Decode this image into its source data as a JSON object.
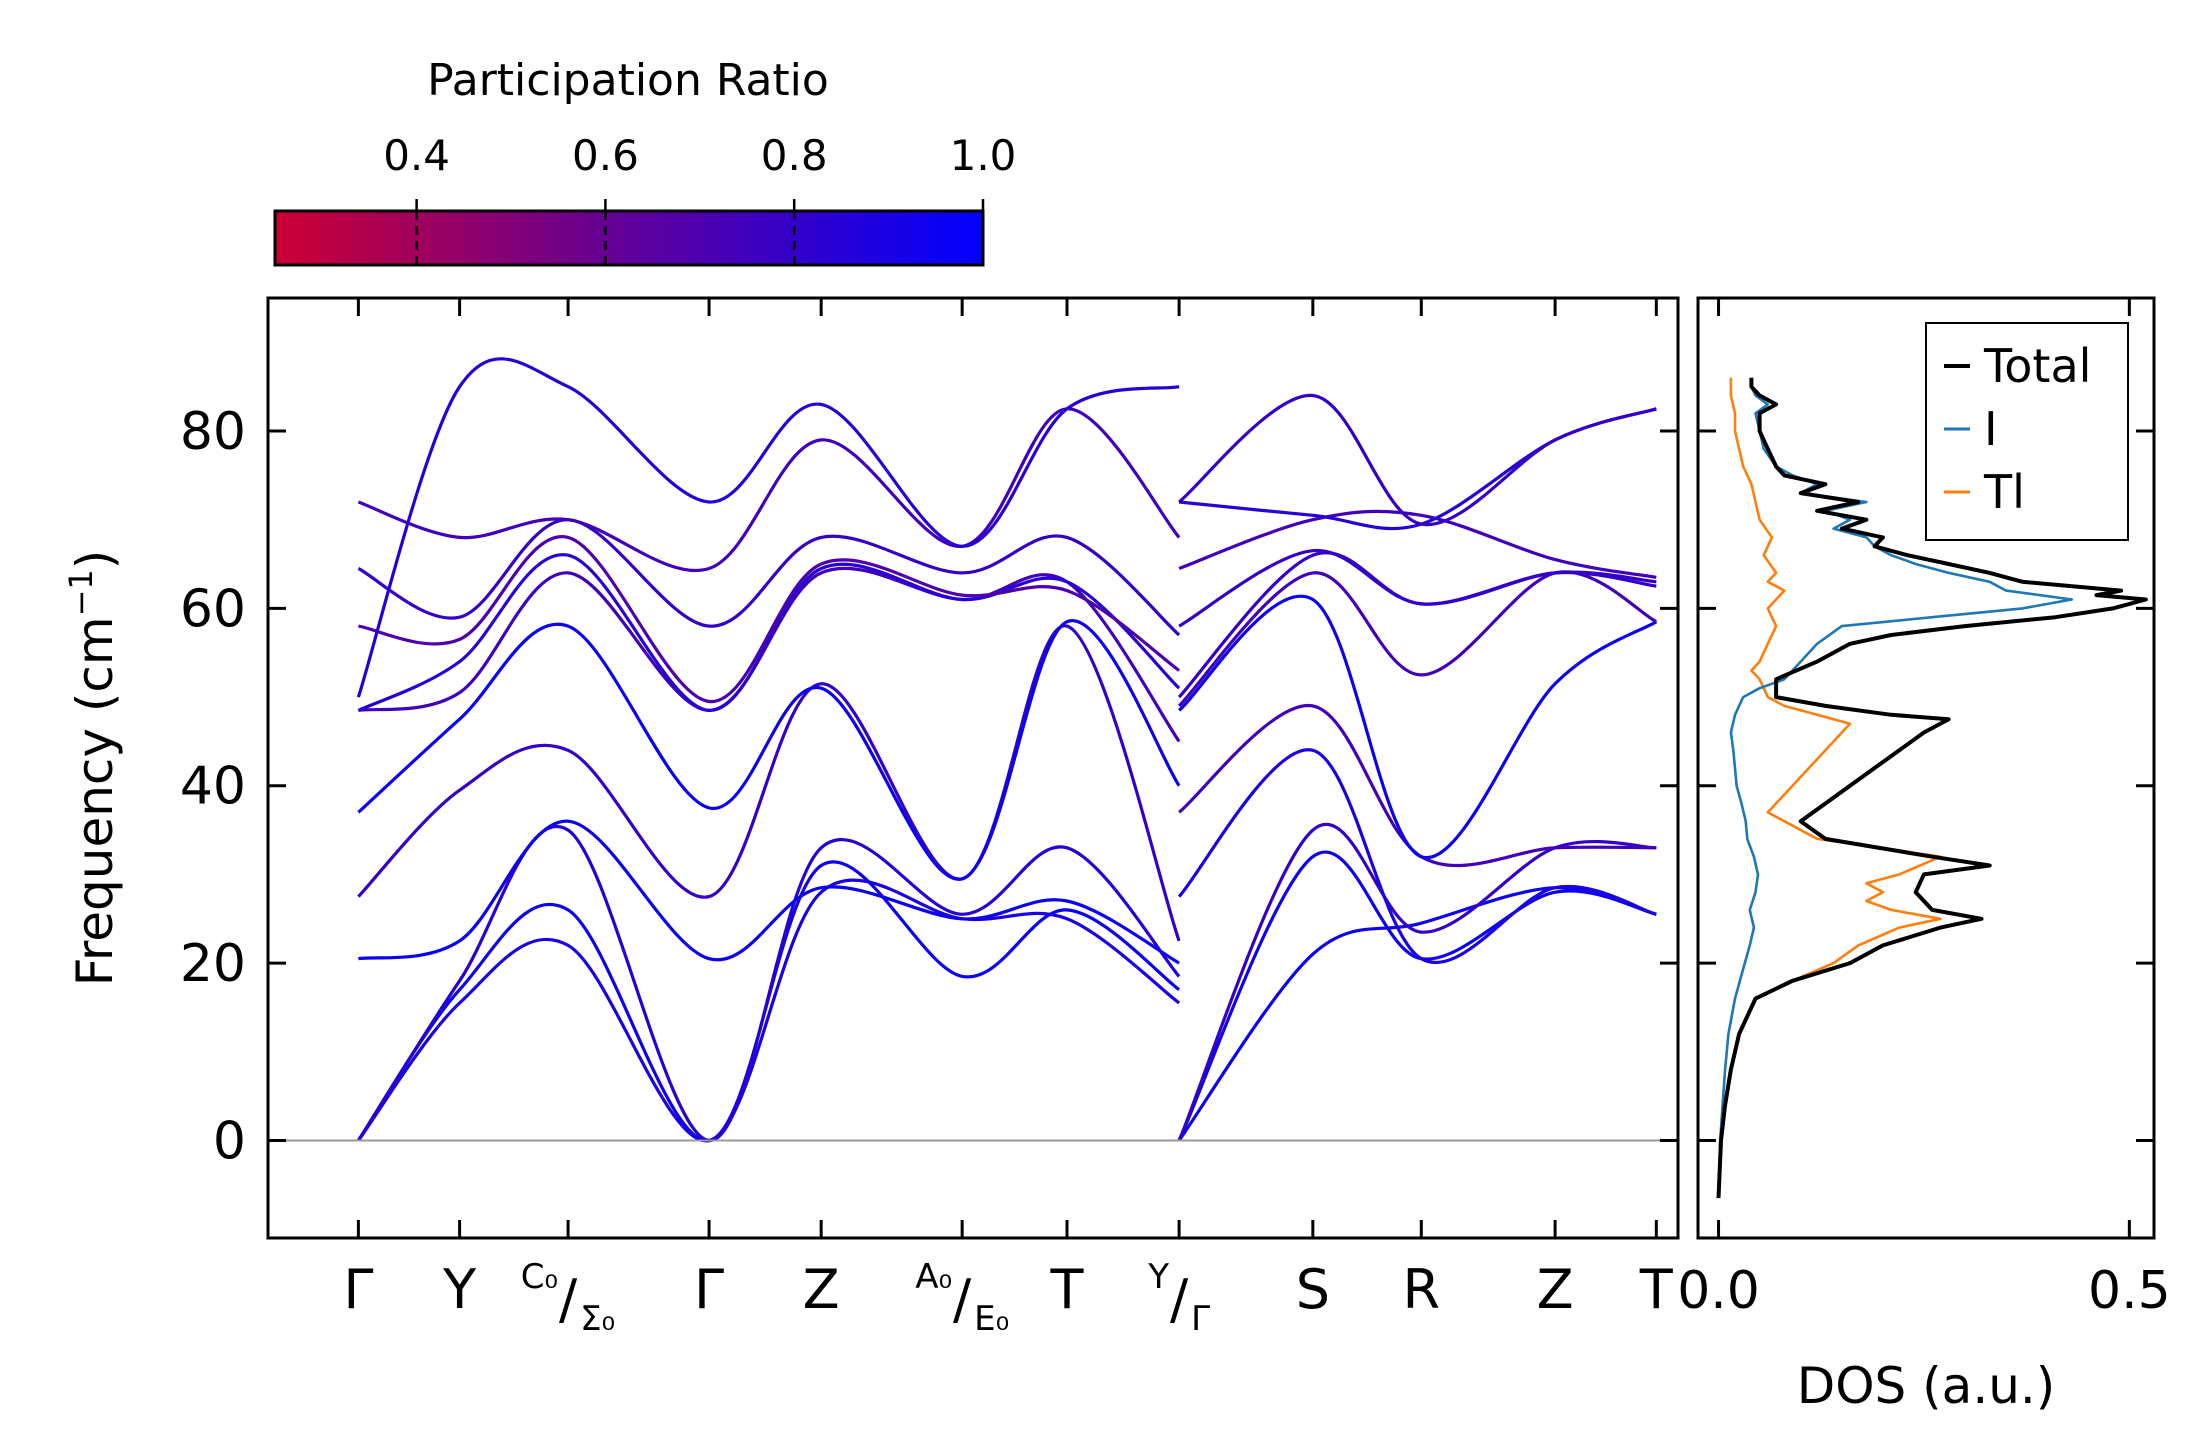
{
  "chart_data": [
    {
      "type": "line",
      "name": "phonon-band-structure",
      "ylabel": "Frequency (cm$^{-1}$)",
      "ylabel_text": "Frequency (cm",
      "ylabel_sup": "−1",
      "ylabel_close": ")",
      "ylim": [
        -11,
        95
      ],
      "yticks": [
        0,
        20,
        40,
        60,
        80
      ],
      "xlim": [
        -0.25,
        3.65
      ],
      "kpoints": [
        {
          "x": 0.0,
          "main": "Γ"
        },
        {
          "x": 0.28,
          "main": "Y"
        },
        {
          "x": 0.58,
          "sup": "C₀",
          "slash": "/",
          "sub": "Σ₀"
        },
        {
          "x": 0.97,
          "main": "Γ"
        },
        {
          "x": 1.28,
          "main": "Z"
        },
        {
          "x": 1.67,
          "sup": "A₀",
          "slash": "/",
          "sub": "E₀"
        },
        {
          "x": 1.96,
          "main": "T"
        },
        {
          "x": 2.27,
          "sup": "Y",
          "slash": "/",
          "sub": "Γ"
        },
        {
          "x": 2.64,
          "main": "S"
        },
        {
          "x": 2.94,
          "main": "R"
        },
        {
          "x": 3.31,
          "main": "Z"
        },
        {
          "x": 3.59,
          "main": "T"
        }
      ],
      "segments": [
        {
          "x": [
            0.0,
            0.28,
            0.58,
            0.97,
            1.28,
            1.67,
            1.96,
            2.27
          ],
          "bands": [
            {
              "pr": 0.9,
              "y": [
                0,
                15.5,
                22,
                0,
                28,
                25,
                25,
                15.5
              ]
            },
            {
              "pr": 0.95,
              "y": [
                0,
                17,
                26,
                0,
                31,
                18.5,
                26,
                17
              ]
            },
            {
              "pr": 0.85,
              "y": [
                0,
                18,
                35,
                0,
                33,
                25.5,
                33,
                18.5
              ]
            },
            {
              "pr": 0.95,
              "y": [
                20.5,
                22.5,
                36,
                20.5,
                28.5,
                25,
                27,
                20
              ]
            },
            {
              "pr": 0.8,
              "y": [
                27.5,
                39.5,
                44,
                27.5,
                51.5,
                29.5,
                58,
                22.5
              ]
            },
            {
              "pr": 0.95,
              "y": [
                37,
                47.5,
                58,
                37.5,
                51,
                29.5,
                58.5,
                40
              ]
            },
            {
              "pr": 0.75,
              "y": [
                48.5,
                50.5,
                64,
                48.5,
                64,
                61,
                63,
                45
              ]
            },
            {
              "pr": 0.85,
              "y": [
                48.5,
                54,
                66,
                48.5,
                64.5,
                61,
                63,
                51
              ]
            },
            {
              "pr": 0.7,
              "y": [
                58,
                56.5,
                68,
                49.5,
                65,
                61.5,
                62,
                53
              ]
            },
            {
              "pr": 0.8,
              "y": [
                64.5,
                59,
                70,
                58,
                68,
                64,
                68,
                57
              ]
            },
            {
              "pr": 0.75,
              "y": [
                72,
                68,
                70,
                64.5,
                79,
                67,
                82.5,
                68
              ]
            },
            {
              "pr": 0.85,
              "y": [
                50,
                85,
                85,
                72,
                83,
                67,
                82.5,
                85
              ]
            }
          ]
        },
        {
          "x": [
            2.27,
            2.64,
            2.94,
            3.31,
            3.59
          ],
          "bands": [
            {
              "pr": 0.95,
              "y": [
                0,
                21,
                24.5,
                28.5,
                25.5
              ]
            },
            {
              "pr": 0.95,
              "y": [
                0,
                32,
                20.5,
                28,
                25.5
              ]
            },
            {
              "pr": 0.8,
              "y": [
                0,
                35,
                23.5,
                33,
                33
              ]
            },
            {
              "pr": 0.9,
              "y": [
                27.5,
                44,
                20.5,
                28.5,
                25.5
              ]
            },
            {
              "pr": 0.75,
              "y": [
                37,
                49,
                32,
                33,
                33
              ]
            },
            {
              "pr": 0.95,
              "y": [
                48.5,
                61,
                32,
                51.5,
                58.5
              ]
            },
            {
              "pr": 0.75,
              "y": [
                49,
                64,
                52.5,
                64,
                58.5
              ]
            },
            {
              "pr": 0.8,
              "y": [
                50,
                66,
                60.5,
                64,
                62.5
              ]
            },
            {
              "pr": 0.8,
              "y": [
                58,
                66.5,
                60.5,
                64,
                63
              ]
            },
            {
              "pr": 0.75,
              "y": [
                64.5,
                70,
                70.5,
                65.5,
                63.5
              ]
            },
            {
              "pr": 0.85,
              "y": [
                72,
                70.5,
                69.5,
                79,
                82.5
              ]
            },
            {
              "pr": 0.8,
              "y": [
                72,
                84,
                69.5,
                79,
                82.5
              ]
            }
          ]
        }
      ],
      "zero_line": 0
    },
    {
      "type": "line",
      "name": "density-of-states",
      "xlabel": "DOS (a.u.)",
      "xlim": [
        -0.025,
        0.53
      ],
      "xticks": [
        0.0,
        0.5
      ],
      "xtick_labels": [
        "0.0",
        "0.5"
      ],
      "ylim": [
        -11,
        95
      ],
      "legend_position": "top-right",
      "series": [
        {
          "name": "Total",
          "color": "#000000",
          "frequency": [
            -6.5,
            0,
            4,
            8,
            12,
            16,
            18,
            20,
            22,
            24,
            25,
            26,
            28,
            30,
            31,
            32,
            34,
            36,
            38,
            40,
            42,
            44,
            46,
            47.5,
            48,
            49,
            50,
            52,
            54,
            56,
            57,
            58,
            59,
            60,
            61,
            61.5,
            62,
            63,
            64,
            65,
            66,
            67,
            68,
            69,
            70,
            71,
            72,
            73,
            74,
            75,
            76,
            78,
            80,
            82,
            83,
            84,
            85,
            86
          ],
          "dos": [
            0.0,
            0.003,
            0.008,
            0.015,
            0.025,
            0.045,
            0.09,
            0.16,
            0.2,
            0.27,
            0.32,
            0.26,
            0.24,
            0.25,
            0.33,
            0.26,
            0.13,
            0.1,
            0.13,
            0.16,
            0.19,
            0.22,
            0.25,
            0.28,
            0.21,
            0.13,
            0.07,
            0.07,
            0.12,
            0.16,
            0.21,
            0.3,
            0.41,
            0.48,
            0.52,
            0.46,
            0.49,
            0.37,
            0.33,
            0.28,
            0.23,
            0.19,
            0.2,
            0.15,
            0.18,
            0.12,
            0.17,
            0.1,
            0.13,
            0.08,
            0.07,
            0.06,
            0.05,
            0.05,
            0.07,
            0.05,
            0.04,
            0.04
          ]
        },
        {
          "name": "I",
          "color": "#1f77b4",
          "frequency": [
            -6.5,
            0,
            4,
            8,
            12,
            14,
            16,
            18,
            20,
            22,
            24,
            26,
            28,
            30,
            32,
            34,
            36,
            38,
            40,
            42,
            44,
            46,
            48,
            50,
            51,
            52,
            54,
            56,
            58,
            59,
            60,
            61,
            62,
            63,
            64,
            65,
            66,
            67,
            68,
            69,
            70,
            71,
            72,
            73,
            74,
            75,
            76,
            78,
            80,
            82,
            83,
            84,
            85,
            86
          ],
          "dos": [
            0.0,
            0.002,
            0.005,
            0.008,
            0.012,
            0.016,
            0.02,
            0.026,
            0.032,
            0.038,
            0.043,
            0.038,
            0.045,
            0.048,
            0.043,
            0.035,
            0.033,
            0.028,
            0.022,
            0.02,
            0.018,
            0.015,
            0.02,
            0.03,
            0.05,
            0.08,
            0.1,
            0.12,
            0.15,
            0.26,
            0.37,
            0.43,
            0.35,
            0.33,
            0.28,
            0.24,
            0.21,
            0.19,
            0.18,
            0.14,
            0.16,
            0.13,
            0.18,
            0.1,
            0.12,
            0.09,
            0.07,
            0.055,
            0.05,
            0.045,
            0.06,
            0.045,
            0.04,
            0.04
          ]
        },
        {
          "name": "Tl",
          "color": "#ff7f0e",
          "frequency": [
            -6.5,
            0,
            4,
            8,
            12,
            16,
            18,
            20,
            22,
            24,
            25,
            26,
            27,
            28,
            29,
            30,
            32,
            34,
            36,
            37,
            38,
            40,
            42,
            44,
            46,
            47,
            48,
            49,
            50,
            52,
            53,
            54,
            56,
            58,
            60,
            61,
            62,
            63,
            64,
            66,
            68,
            70,
            72,
            74,
            76,
            78,
            80,
            82,
            84,
            86
          ],
          "dos": [
            0.0,
            0.003,
            0.008,
            0.015,
            0.025,
            0.045,
            0.09,
            0.14,
            0.17,
            0.22,
            0.27,
            0.21,
            0.18,
            0.2,
            0.18,
            0.22,
            0.27,
            0.12,
            0.08,
            0.06,
            0.07,
            0.09,
            0.11,
            0.13,
            0.15,
            0.16,
            0.12,
            0.08,
            0.06,
            0.05,
            0.04,
            0.05,
            0.06,
            0.07,
            0.06,
            0.07,
            0.08,
            0.06,
            0.07,
            0.055,
            0.065,
            0.05,
            0.045,
            0.04,
            0.03,
            0.025,
            0.02,
            0.02,
            0.015,
            0.015
          ]
        }
      ]
    }
  ],
  "colorbar": {
    "label": "Participation Ratio",
    "ticks": [
      0.4,
      0.6,
      0.8,
      1.0
    ],
    "tick_labels": [
      "0.4",
      "0.6",
      "0.8",
      "1.0"
    ],
    "range": [
      0.25,
      1.0
    ],
    "color_low": "#cc0033",
    "color_high": "#0000ff"
  }
}
